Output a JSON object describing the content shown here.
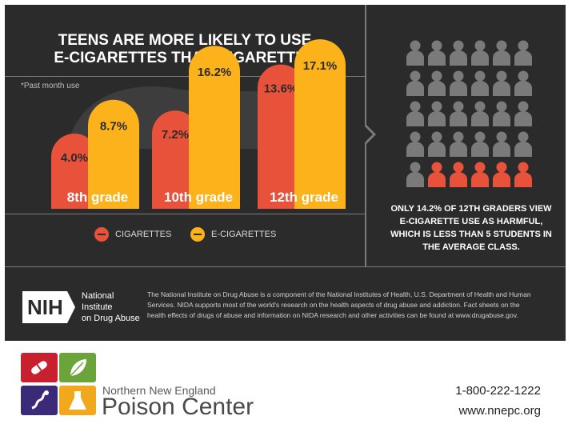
{
  "infographic": {
    "title_line1": "TEENS ARE MORE LIKELY TO USE",
    "title_line2": "E-CIGARETTES THAN CIGARETTES",
    "past_label": "*Past month use",
    "colors": {
      "cigarettes": "#e8523a",
      "ecigarettes": "#fbb21b",
      "background": "#2c2b2b",
      "grey": "#7a7a7a"
    },
    "legend": {
      "cigarettes": "CIGARETTES",
      "ecigarettes": "E-CIGARETTES"
    },
    "stat_text_line1": "ONLY 14.2% OF 12TH GRADERS VIEW",
    "stat_text_line2": "E-CIGARETTE USE AS HARMFUL,",
    "stat_text_line3": "WHICH IS LESS THAN 5 STUDENTS IN",
    "stat_text_line4": "THE AVERAGE CLASS.",
    "people_grid": {
      "rows": 5,
      "cols": 6,
      "highlighted": 5,
      "highlight_start_row": 4,
      "highlight_start_col": 1
    }
  },
  "chart_data": {
    "type": "bar",
    "categories": [
      "8th grade",
      "10th grade",
      "12th grade"
    ],
    "series": [
      {
        "name": "CIGARETTES",
        "values": [
          4.0,
          7.2,
          13.6
        ],
        "labels": [
          "4.0%",
          "7.2%",
          "13.6%"
        ]
      },
      {
        "name": "E-CIGARETTES",
        "values": [
          8.7,
          16.2,
          17.1
        ],
        "labels": [
          "8.7%",
          "16.2%",
          "17.1%"
        ]
      }
    ],
    "ylim": [
      0,
      20
    ]
  },
  "nih": {
    "logo_text": "NIH",
    "name_line1": "National Institute",
    "name_line2": "on Drug Abuse",
    "note_line1": "The National Institute on Drug Abuse is a component of the National Institutes of Health, U.S. Department of Health and Human",
    "note_line2": "Services. NIDA supports most of the world's research on the health aspects of drug abuse and addiction. Fact sheets on the",
    "note_line3": "health effects of drugs of abuse and information on NIDA research and other activities can be found at www.drugabuse.gov."
  },
  "poison_center": {
    "name_small": "Northern New England",
    "name_big": "Poison Center",
    "tile_colors": [
      "#c8202f",
      "#6aa43a",
      "#3b2a78",
      "#f2a81d"
    ],
    "tile_icons": [
      "pill-icon",
      "leaf-icon",
      "snake-icon",
      "flask-icon"
    ],
    "phone": "1-800-222-1222",
    "website": "www.nnepc.org"
  }
}
